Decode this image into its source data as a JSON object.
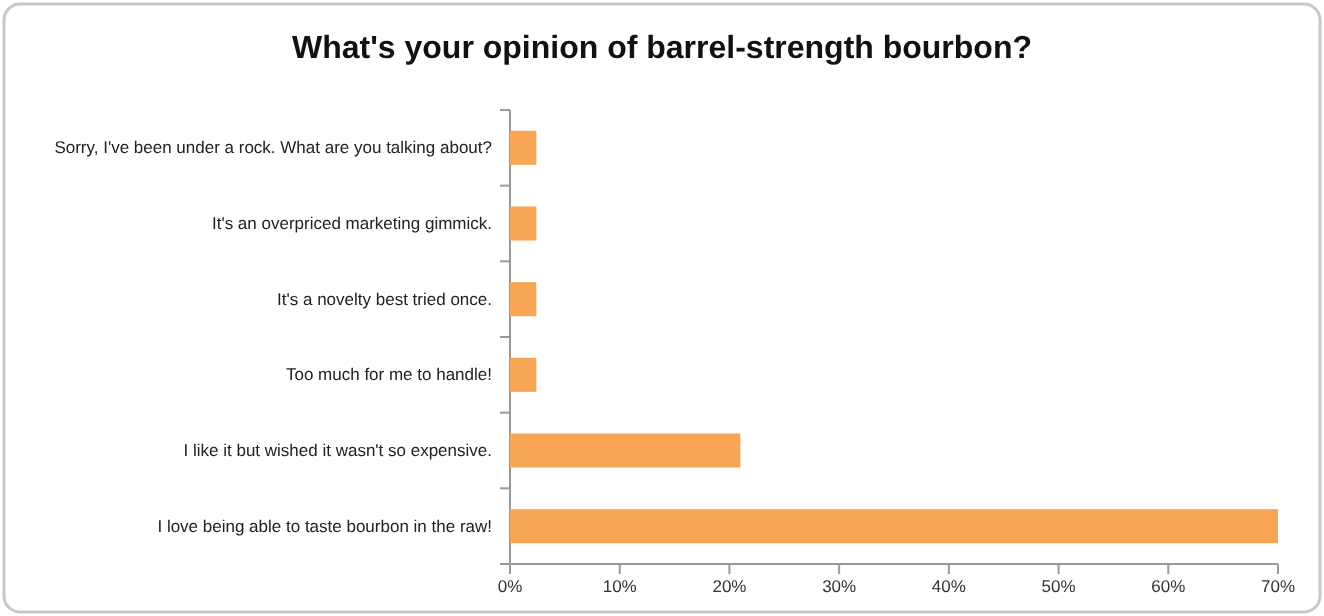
{
  "chart_data": {
    "type": "bar",
    "orientation": "horizontal",
    "title": "What's your opinion of barrel-strength bourbon?",
    "categories": [
      "Sorry, I've been under a rock. What are you talking about?",
      "It's an overpriced marketing gimmick.",
      "It's a novelty best tried once.",
      "Too much for me to handle!",
      "I like it but wished it wasn't so expensive.",
      "I love being able to taste bourbon in the raw!"
    ],
    "values": [
      2.4,
      2.4,
      2.4,
      2.4,
      21,
      70
    ],
    "color": "#f8a556",
    "xlim": [
      0,
      70
    ],
    "xticks": [
      {
        "value": 0,
        "label": "0%"
      },
      {
        "value": 10,
        "label": "10%"
      },
      {
        "value": 20,
        "label": "20%"
      },
      {
        "value": 30,
        "label": "30%"
      },
      {
        "value": 40,
        "label": "40%"
      },
      {
        "value": 50,
        "label": "50%"
      },
      {
        "value": 60,
        "label": "60%"
      },
      {
        "value": 70,
        "label": "70%"
      }
    ],
    "grid": false
  }
}
